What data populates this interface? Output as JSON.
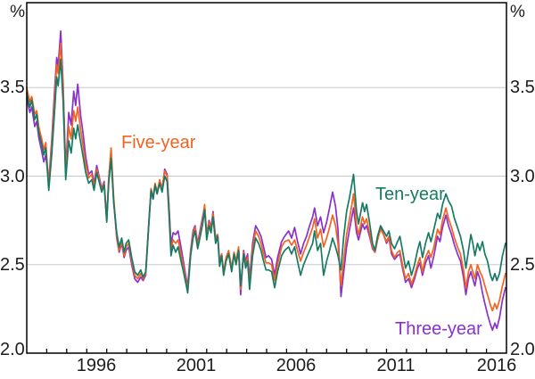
{
  "axis": {
    "unit": "%",
    "y_ticks": [
      "3.5",
      "3.0",
      "2.5",
      "2.0"
    ],
    "x_ticks": [
      "1996",
      "2001",
      "2006",
      "2011",
      "2016"
    ]
  },
  "series_labels": {
    "five_year": "Five-year",
    "ten_year": "Ten-year",
    "three_year": "Three-year"
  },
  "colors": {
    "five_year": "#F4621F",
    "ten_year": "#177A64",
    "three_year": "#8A31C9",
    "gridline": "#C9C9C9",
    "axis": "#000000",
    "tick_label": "#1c1c1c"
  },
  "chart_data": {
    "type": "line",
    "title": "",
    "ylabel": "%",
    "xlim": [
      1993,
      2017
    ],
    "ylim": [
      2.0,
      3.98
    ],
    "y_gridlines": [
      2.5,
      3.0,
      3.5
    ],
    "x_minor_tick_years": [
      1994,
      2016
    ],
    "x_labeled_years": [
      1996,
      2001,
      2006,
      2011,
      2016
    ],
    "legend_position": "inline-annotations",
    "columns": [
      "year",
      "three_year",
      "five_year",
      "ten_year"
    ],
    "series": [
      {
        "name": "Three-year",
        "key": "three_year",
        "column": 1,
        "color": "#8A31C9"
      },
      {
        "name": "Five-year",
        "key": "five_year",
        "column": 2,
        "color": "#F4621F"
      },
      {
        "name": "Ten-year",
        "key": "ten_year",
        "column": 3,
        "color": "#177A64"
      }
    ],
    "points": [
      [
        1993.0,
        3.44,
        3.5,
        3.47
      ],
      [
        1993.15,
        3.36,
        3.42,
        3.39
      ],
      [
        1993.25,
        3.39,
        3.45,
        3.43
      ],
      [
        1993.4,
        3.28,
        3.35,
        3.32
      ],
      [
        1993.5,
        3.31,
        3.37,
        3.35
      ],
      [
        1993.6,
        3.22,
        3.28,
        3.25
      ],
      [
        1993.75,
        3.14,
        3.21,
        3.18
      ],
      [
        1993.85,
        3.08,
        3.15,
        3.12
      ],
      [
        1993.95,
        3.12,
        3.19,
        3.16
      ],
      [
        1994.1,
        2.97,
        2.95,
        2.92
      ],
      [
        1994.25,
        3.2,
        3.17,
        3.12
      ],
      [
        1994.4,
        3.5,
        3.45,
        3.38
      ],
      [
        1994.5,
        3.67,
        3.63,
        3.56
      ],
      [
        1994.57,
        3.62,
        3.58,
        3.51
      ],
      [
        1994.7,
        3.82,
        3.75,
        3.66
      ],
      [
        1994.82,
        3.52,
        3.49,
        3.42
      ],
      [
        1994.95,
        3.03,
        3.01,
        2.98
      ],
      [
        1995.1,
        3.36,
        3.28,
        3.2
      ],
      [
        1995.22,
        3.29,
        3.21,
        3.13
      ],
      [
        1995.35,
        3.48,
        3.37,
        3.27
      ],
      [
        1995.45,
        3.4,
        3.31,
        3.21
      ],
      [
        1995.55,
        3.52,
        3.39,
        3.29
      ],
      [
        1995.7,
        3.34,
        3.26,
        3.19
      ],
      [
        1995.82,
        3.24,
        3.17,
        3.11
      ],
      [
        1995.95,
        3.11,
        3.07,
        3.02
      ],
      [
        1996.1,
        3.01,
        2.99,
        2.96
      ],
      [
        1996.25,
        3.03,
        3.01,
        2.98
      ],
      [
        1996.37,
        2.96,
        2.94,
        2.92
      ],
      [
        1996.5,
        3.06,
        3.04,
        3.02
      ],
      [
        1996.62,
        3.0,
        2.99,
        2.97
      ],
      [
        1996.75,
        2.93,
        2.92,
        2.91
      ],
      [
        1996.87,
        2.97,
        2.96,
        2.95
      ],
      [
        1997.0,
        2.75,
        2.75,
        2.74
      ],
      [
        1997.1,
        2.98,
        2.99,
        2.96
      ],
      [
        1997.22,
        3.13,
        3.16,
        3.1
      ],
      [
        1997.35,
        2.86,
        2.88,
        2.85
      ],
      [
        1997.5,
        2.65,
        2.66,
        2.68
      ],
      [
        1997.62,
        2.57,
        2.58,
        2.6
      ],
      [
        1997.75,
        2.62,
        2.63,
        2.65
      ],
      [
        1997.87,
        2.54,
        2.55,
        2.57
      ],
      [
        1997.97,
        2.58,
        2.6,
        2.62
      ],
      [
        1998.1,
        2.6,
        2.62,
        2.64
      ],
      [
        1998.25,
        2.5,
        2.52,
        2.54
      ],
      [
        1998.4,
        2.42,
        2.44,
        2.46
      ],
      [
        1998.55,
        2.4,
        2.42,
        2.44
      ],
      [
        1998.7,
        2.43,
        2.45,
        2.47
      ],
      [
        1998.82,
        2.41,
        2.42,
        2.43
      ],
      [
        1998.95,
        2.44,
        2.45,
        2.46
      ],
      [
        1999.1,
        2.71,
        2.72,
        2.72
      ],
      [
        1999.22,
        2.92,
        2.93,
        2.92
      ],
      [
        1999.32,
        2.87,
        2.88,
        2.87
      ],
      [
        1999.42,
        2.95,
        2.96,
        2.95
      ],
      [
        1999.52,
        2.9,
        2.91,
        2.9
      ],
      [
        1999.65,
        2.97,
        2.98,
        2.96
      ],
      [
        1999.77,
        2.92,
        2.93,
        2.91
      ],
      [
        1999.9,
        3.04,
        3.03,
        3.0
      ],
      [
        2000.02,
        3.01,
        3.0,
        2.97
      ],
      [
        2000.12,
        2.83,
        2.81,
        2.78
      ],
      [
        2000.22,
        2.61,
        2.58,
        2.55
      ],
      [
        2000.32,
        2.68,
        2.64,
        2.61
      ],
      [
        2000.45,
        2.67,
        2.62,
        2.57
      ],
      [
        2000.57,
        2.69,
        2.64,
        2.6
      ],
      [
        2000.7,
        2.61,
        2.57,
        2.53
      ],
      [
        2000.82,
        2.53,
        2.5,
        2.47
      ],
      [
        2000.95,
        2.44,
        2.42,
        2.4
      ],
      [
        2001.05,
        2.38,
        2.36,
        2.34
      ],
      [
        2001.2,
        2.58,
        2.57,
        2.55
      ],
      [
        2001.32,
        2.69,
        2.67,
        2.65
      ],
      [
        2001.42,
        2.72,
        2.71,
        2.69
      ],
      [
        2001.55,
        2.62,
        2.61,
        2.59
      ],
      [
        2001.7,
        2.71,
        2.69,
        2.67
      ],
      [
        2001.8,
        2.77,
        2.75,
        2.73
      ],
      [
        2001.9,
        2.83,
        2.84,
        2.81
      ],
      [
        2002.0,
        2.67,
        2.66,
        2.64
      ],
      [
        2002.12,
        2.75,
        2.74,
        2.72
      ],
      [
        2002.22,
        2.71,
        2.7,
        2.68
      ],
      [
        2002.32,
        2.8,
        2.79,
        2.77
      ],
      [
        2002.45,
        2.65,
        2.64,
        2.62
      ],
      [
        2002.55,
        2.67,
        2.67,
        2.66
      ],
      [
        2002.65,
        2.52,
        2.51,
        2.49
      ],
      [
        2002.75,
        2.56,
        2.56,
        2.55
      ],
      [
        2002.85,
        2.45,
        2.46,
        2.44
      ],
      [
        2002.97,
        2.53,
        2.54,
        2.52
      ],
      [
        2003.1,
        2.57,
        2.58,
        2.56
      ],
      [
        2003.25,
        2.47,
        2.48,
        2.46
      ],
      [
        2003.37,
        2.56,
        2.57,
        2.56
      ],
      [
        2003.47,
        2.51,
        2.52,
        2.5
      ],
      [
        2003.6,
        2.59,
        2.6,
        2.58
      ],
      [
        2003.7,
        2.33,
        2.36,
        2.38
      ],
      [
        2003.85,
        2.58,
        2.57,
        2.56
      ],
      [
        2003.95,
        2.52,
        2.5,
        2.48
      ],
      [
        2004.05,
        2.56,
        2.54,
        2.52
      ],
      [
        2004.15,
        2.42,
        2.39,
        2.36
      ],
      [
        2004.3,
        2.62,
        2.59,
        2.55
      ],
      [
        2004.45,
        2.72,
        2.69,
        2.65
      ],
      [
        2004.6,
        2.69,
        2.66,
        2.62
      ],
      [
        2004.72,
        2.66,
        2.62,
        2.58
      ],
      [
        2004.85,
        2.6,
        2.56,
        2.52
      ],
      [
        2004.97,
        2.54,
        2.51,
        2.47
      ],
      [
        2005.1,
        2.55,
        2.51,
        2.47
      ],
      [
        2005.25,
        2.53,
        2.5,
        2.46
      ],
      [
        2005.4,
        2.44,
        2.41,
        2.37
      ],
      [
        2005.55,
        2.54,
        2.5,
        2.46
      ],
      [
        2005.75,
        2.63,
        2.6,
        2.55
      ],
      [
        2005.9,
        2.66,
        2.63,
        2.58
      ],
      [
        2006.1,
        2.69,
        2.64,
        2.6
      ],
      [
        2006.25,
        2.65,
        2.61,
        2.56
      ],
      [
        2006.4,
        2.71,
        2.64,
        2.6
      ],
      [
        2006.55,
        2.63,
        2.58,
        2.52
      ],
      [
        2006.7,
        2.56,
        2.52,
        2.44
      ],
      [
        2006.85,
        2.62,
        2.57,
        2.5
      ],
      [
        2007.0,
        2.66,
        2.61,
        2.54
      ],
      [
        2007.15,
        2.72,
        2.66,
        2.58
      ],
      [
        2007.3,
        2.77,
        2.71,
        2.62
      ],
      [
        2007.4,
        2.82,
        2.76,
        2.69
      ],
      [
        2007.55,
        2.72,
        2.65,
        2.58
      ],
      [
        2007.7,
        2.77,
        2.7,
        2.62
      ],
      [
        2007.85,
        2.68,
        2.6,
        2.44
      ],
      [
        2008.0,
        2.74,
        2.65,
        2.52
      ],
      [
        2008.15,
        2.82,
        2.71,
        2.58
      ],
      [
        2008.3,
        2.91,
        2.78,
        2.65
      ],
      [
        2008.45,
        2.83,
        2.72,
        2.6
      ],
      [
        2008.57,
        2.7,
        2.62,
        2.55
      ],
      [
        2008.72,
        2.32,
        2.38,
        2.47
      ],
      [
        2008.85,
        2.45,
        2.52,
        2.65
      ],
      [
        2009.0,
        2.6,
        2.67,
        2.8
      ],
      [
        2009.15,
        2.7,
        2.76,
        2.88
      ],
      [
        2009.35,
        2.82,
        2.9,
        3.01
      ],
      [
        2009.5,
        2.68,
        2.72,
        2.8
      ],
      [
        2009.6,
        2.64,
        2.67,
        2.73
      ],
      [
        2009.8,
        2.73,
        2.77,
        2.85
      ],
      [
        2009.9,
        2.7,
        2.73,
        2.8
      ],
      [
        2010.0,
        2.72,
        2.76,
        2.84
      ],
      [
        2010.15,
        2.66,
        2.68,
        2.74
      ],
      [
        2010.3,
        2.59,
        2.6,
        2.62
      ],
      [
        2010.42,
        2.57,
        2.57,
        2.58
      ],
      [
        2010.55,
        2.64,
        2.64,
        2.66
      ],
      [
        2010.7,
        2.71,
        2.7,
        2.72
      ],
      [
        2010.85,
        2.67,
        2.67,
        2.69
      ],
      [
        2011.0,
        2.62,
        2.63,
        2.66
      ],
      [
        2011.12,
        2.65,
        2.66,
        2.69
      ],
      [
        2011.25,
        2.56,
        2.58,
        2.62
      ],
      [
        2011.4,
        2.53,
        2.54,
        2.59
      ],
      [
        2011.55,
        2.55,
        2.57,
        2.63
      ],
      [
        2011.67,
        2.56,
        2.58,
        2.66
      ],
      [
        2011.8,
        2.48,
        2.5,
        2.58
      ],
      [
        2011.95,
        2.4,
        2.42,
        2.48
      ],
      [
        2012.1,
        2.42,
        2.45,
        2.52
      ],
      [
        2012.25,
        2.37,
        2.39,
        2.44
      ],
      [
        2012.4,
        2.42,
        2.44,
        2.5
      ],
      [
        2012.55,
        2.48,
        2.5,
        2.58
      ],
      [
        2012.67,
        2.51,
        2.54,
        2.63
      ],
      [
        2012.8,
        2.44,
        2.46,
        2.54
      ],
      [
        2012.95,
        2.51,
        2.54,
        2.62
      ],
      [
        2013.1,
        2.55,
        2.58,
        2.68
      ],
      [
        2013.22,
        2.48,
        2.54,
        2.63
      ],
      [
        2013.37,
        2.55,
        2.6,
        2.7
      ],
      [
        2013.55,
        2.66,
        2.7,
        2.79
      ],
      [
        2013.67,
        2.63,
        2.67,
        2.76
      ],
      [
        2013.8,
        2.71,
        2.75,
        2.84
      ],
      [
        2013.97,
        2.78,
        2.82,
        2.9
      ],
      [
        2014.1,
        2.72,
        2.76,
        2.86
      ],
      [
        2014.25,
        2.67,
        2.71,
        2.83
      ],
      [
        2014.4,
        2.61,
        2.65,
        2.76
      ],
      [
        2014.55,
        2.56,
        2.6,
        2.71
      ],
      [
        2014.7,
        2.52,
        2.56,
        2.66
      ],
      [
        2014.85,
        2.43,
        2.47,
        2.58
      ],
      [
        2014.97,
        2.33,
        2.37,
        2.48
      ],
      [
        2015.1,
        2.42,
        2.46,
        2.58
      ],
      [
        2015.22,
        2.46,
        2.5,
        2.67
      ],
      [
        2015.32,
        2.42,
        2.46,
        2.62
      ],
      [
        2015.42,
        2.38,
        2.42,
        2.55
      ],
      [
        2015.55,
        2.46,
        2.5,
        2.62
      ],
      [
        2015.67,
        2.42,
        2.46,
        2.58
      ],
      [
        2015.8,
        2.34,
        2.43,
        2.63
      ],
      [
        2015.92,
        2.28,
        2.38,
        2.56
      ],
      [
        2016.05,
        2.22,
        2.33,
        2.52
      ],
      [
        2016.2,
        2.16,
        2.27,
        2.44
      ],
      [
        2016.3,
        2.13,
        2.24,
        2.41
      ],
      [
        2016.42,
        2.17,
        2.28,
        2.45
      ],
      [
        2016.52,
        2.14,
        2.25,
        2.41
      ],
      [
        2016.65,
        2.2,
        2.3,
        2.45
      ],
      [
        2016.8,
        2.3,
        2.38,
        2.55
      ],
      [
        2016.95,
        2.37,
        2.45,
        2.62
      ]
    ]
  }
}
